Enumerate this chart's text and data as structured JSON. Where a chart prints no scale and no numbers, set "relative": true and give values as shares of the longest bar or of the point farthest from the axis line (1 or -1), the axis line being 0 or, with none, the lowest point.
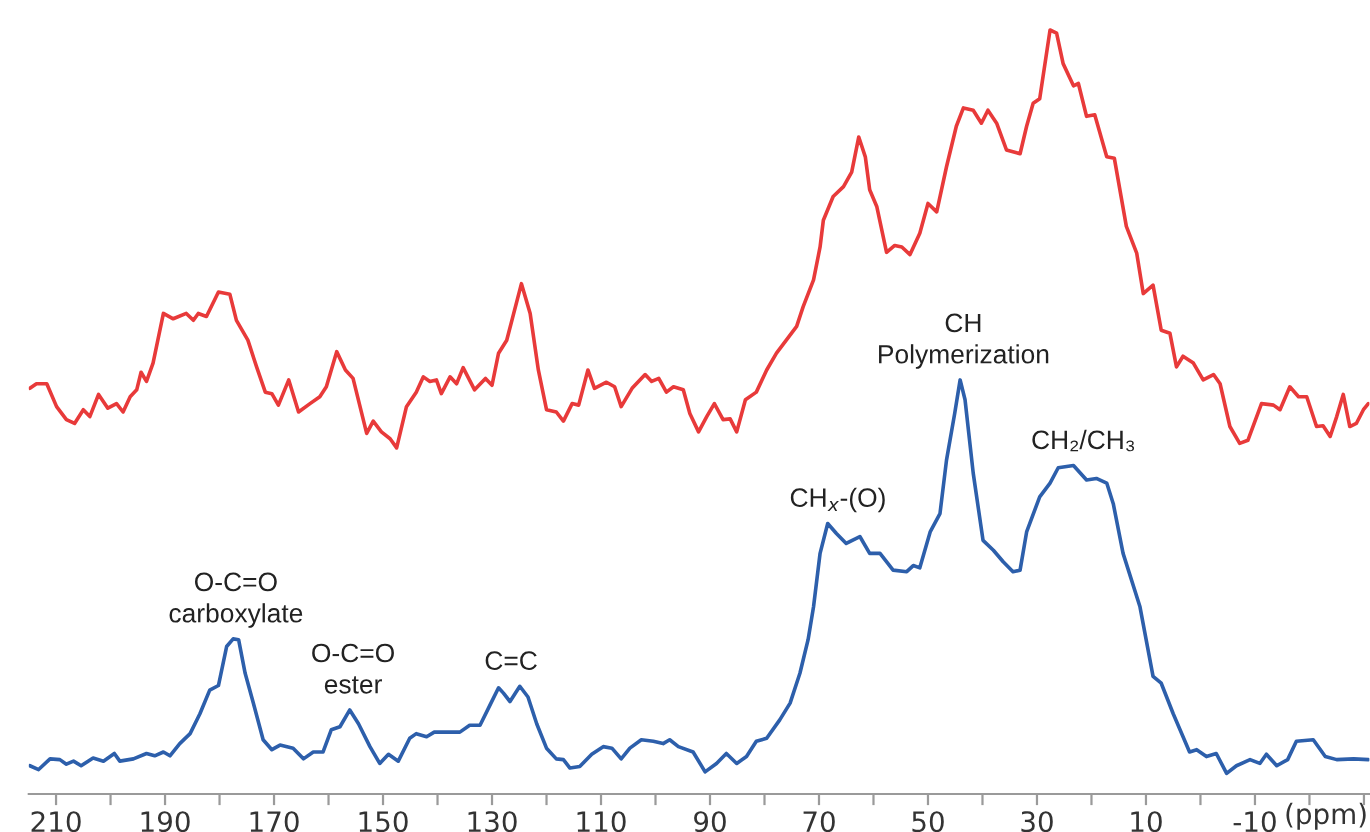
{
  "chart_data": {
    "type": "line",
    "relative": true,
    "xlabel": "(ppm)",
    "xlim": [
      215,
      -31
    ],
    "xticks": [
      210,
      {
        "value": 200,
        "label": null
      },
      190,
      {
        "value": 180,
        "label": null
      },
      170,
      {
        "value": 160,
        "label": null
      },
      150,
      {
        "value": 140,
        "label": null
      },
      130,
      {
        "value": 120,
        "label": null
      },
      110,
      {
        "value": 100,
        "label": null
      },
      90,
      {
        "value": 80,
        "label": null
      },
      70,
      {
        "value": 60,
        "label": null
      },
      50,
      {
        "value": 40,
        "label": null
      },
      30,
      {
        "value": 20,
        "label": null
      },
      10,
      {
        "value": 0,
        "label": null
      },
      -10,
      {
        "value": -20,
        "label": null
      },
      {
        "value": -30,
        "label": null
      }
    ],
    "series": [
      {
        "color": "#e83a3a",
        "x": [
          214.8,
          213.6,
          211.7,
          209.9,
          208.1,
          206.6,
          205.0,
          203.8,
          202.2,
          200.5,
          198.9,
          197.7,
          196.4,
          195.2,
          194.4,
          193.4,
          192.2,
          190.3,
          188.5,
          186.1,
          184.8,
          183.9,
          182.4,
          180.2,
          178.1,
          176.9,
          174.8,
          173.2,
          171.6,
          170.4,
          169.2,
          167.3,
          165.5,
          163.4,
          161.6,
          160.4,
          158.5,
          156.9,
          155.5,
          153.0,
          151.8,
          150.3,
          148.7,
          147.5,
          145.7,
          143.9,
          142.6,
          141.4,
          140.2,
          139.3,
          137.7,
          136.5,
          135.3,
          133.2,
          131.2,
          130.0,
          128.8,
          127.3,
          124.6,
          123.0,
          121.5,
          120.0,
          118.2,
          116.9,
          115.3,
          114.1,
          112.4,
          111.2,
          109.0,
          107.5,
          106.3,
          104.3,
          101.9,
          100.7,
          99.4,
          98.0,
          96.7,
          94.9,
          93.7,
          92.1,
          90.6,
          89.2,
          87.6,
          86.3,
          85.1,
          83.5,
          81.5,
          79.6,
          77.8,
          76.0,
          74.1,
          72.9,
          71.0,
          69.8,
          69.2,
          67.4,
          65.5,
          64.0,
          62.7,
          61.5,
          60.7,
          59.4,
          57.6,
          56.1,
          54.8,
          53.3,
          51.5,
          50.0,
          48.4,
          46.6,
          44.8,
          43.5,
          41.7,
          40.2,
          39.0,
          37.4,
          35.6,
          33.1,
          31.9,
          30.7,
          29.5,
          27.6,
          26.4,
          25.2,
          23.3,
          22.4,
          20.9,
          19.4,
          17.2,
          15.8,
          13.6,
          11.7,
          10.5,
          8.7,
          7.2,
          5.6,
          4.4,
          3.2,
          1.3,
          -0.5,
          -2.4,
          -3.6,
          -5.4,
          -7.2,
          -8.7,
          -11.2,
          -13.4,
          -14.6,
          -16.4,
          -18.0,
          -19.5,
          -21.3,
          -22.5,
          -23.8,
          -25.0,
          -26.2,
          -27.4,
          -28.6,
          -29.9,
          -30.8
        ],
        "values": [
          0.531,
          0.537,
          0.537,
          0.507,
          0.49,
          0.485,
          0.503,
          0.494,
          0.523,
          0.505,
          0.511,
          0.5,
          0.52,
          0.529,
          0.552,
          0.54,
          0.564,
          0.629,
          0.622,
          0.629,
          0.62,
          0.629,
          0.625,
          0.657,
          0.654,
          0.62,
          0.594,
          0.559,
          0.526,
          0.524,
          0.509,
          0.542,
          0.5,
          0.511,
          0.52,
          0.533,
          0.579,
          0.555,
          0.544,
          0.472,
          0.488,
          0.474,
          0.465,
          0.453,
          0.507,
          0.526,
          0.546,
          0.54,
          0.542,
          0.524,
          0.546,
          0.537,
          0.558,
          0.529,
          0.544,
          0.535,
          0.577,
          0.594,
          0.668,
          0.629,
          0.555,
          0.503,
          0.5,
          0.488,
          0.511,
          0.509,
          0.555,
          0.531,
          0.539,
          0.533,
          0.507,
          0.531,
          0.549,
          0.54,
          0.544,
          0.526,
          0.533,
          0.529,
          0.498,
          0.474,
          0.494,
          0.511,
          0.49,
          0.491,
          0.474,
          0.516,
          0.526,
          0.555,
          0.577,
          0.594,
          0.612,
          0.638,
          0.673,
          0.716,
          0.751,
          0.782,
          0.795,
          0.814,
          0.86,
          0.834,
          0.791,
          0.769,
          0.709,
          0.718,
          0.716,
          0.706,
          0.734,
          0.773,
          0.762,
          0.821,
          0.874,
          0.898,
          0.895,
          0.878,
          0.895,
          0.878,
          0.843,
          0.838,
          0.874,
          0.904,
          0.91,
          1.0,
          0.996,
          0.956,
          0.927,
          0.93,
          0.887,
          0.889,
          0.834,
          0.832,
          0.743,
          0.708,
          0.655,
          0.666,
          0.607,
          0.603,
          0.559,
          0.573,
          0.564,
          0.542,
          0.549,
          0.537,
          0.481,
          0.459,
          0.463,
          0.511,
          0.509,
          0.503,
          0.533,
          0.52,
          0.52,
          0.481,
          0.482,
          0.468,
          0.494,
          0.523,
          0.481,
          0.485,
          0.503,
          0.511
        ]
      },
      {
        "color": "#2d5fab",
        "x": [
          214.8,
          213.2,
          211.1,
          209.3,
          208.1,
          206.8,
          205.4,
          203.2,
          201.3,
          199.3,
          198.3,
          195.8,
          193.4,
          191.9,
          190.3,
          189.1,
          187.3,
          185.4,
          183.6,
          181.8,
          180.2,
          178.7,
          177.5,
          176.5,
          175.3,
          173.8,
          172.0,
          170.4,
          168.9,
          166.5,
          164.6,
          162.8,
          161.0,
          159.5,
          157.9,
          156.1,
          154.5,
          152.4,
          150.6,
          149.0,
          147.2,
          145.1,
          143.9,
          142.0,
          140.6,
          135.9,
          134.1,
          132.2,
          130.4,
          128.8,
          127.9,
          126.7,
          124.9,
          123.4,
          121.8,
          120.0,
          118.2,
          116.9,
          115.7,
          113.9,
          111.7,
          109.6,
          108.0,
          106.3,
          104.7,
          102.6,
          100.4,
          98.6,
          97.4,
          95.8,
          93.1,
          90.9,
          88.8,
          87.0,
          85.1,
          83.3,
          81.5,
          79.6,
          77.2,
          75.3,
          73.5,
          72.0,
          71.0,
          69.8,
          68.4,
          66.8,
          65.0,
          62.5,
          60.7,
          58.8,
          56.4,
          53.9,
          52.7,
          51.5,
          49.6,
          47.8,
          46.6,
          45.1,
          44.1,
          43.2,
          41.7,
          39.9,
          38.0,
          36.2,
          34.4,
          33.1,
          31.9,
          29.5,
          27.6,
          26.1,
          23.3,
          20.9,
          19.1,
          17.2,
          16.0,
          14.2,
          11.1,
          8.7,
          7.2,
          5.0,
          2.0,
          0.7,
          -1.1,
          -2.9,
          -4.8,
          -6.6,
          -9.1,
          -10.9,
          -12.1,
          -14.0,
          -16.0,
          -17.6,
          -20.7,
          -22.9,
          -25.0,
          -28.1,
          -30.8
        ],
        "values": [
          0.037,
          0.032,
          0.046,
          0.045,
          0.039,
          0.043,
          0.037,
          0.047,
          0.043,
          0.053,
          0.043,
          0.046,
          0.053,
          0.05,
          0.055,
          0.05,
          0.066,
          0.079,
          0.105,
          0.136,
          0.142,
          0.193,
          0.203,
          0.202,
          0.158,
          0.119,
          0.071,
          0.058,
          0.064,
          0.06,
          0.046,
          0.055,
          0.055,
          0.084,
          0.088,
          0.11,
          0.092,
          0.062,
          0.04,
          0.052,
          0.043,
          0.073,
          0.079,
          0.075,
          0.081,
          0.081,
          0.09,
          0.09,
          0.116,
          0.139,
          0.132,
          0.121,
          0.141,
          0.127,
          0.092,
          0.06,
          0.046,
          0.045,
          0.034,
          0.036,
          0.052,
          0.062,
          0.06,
          0.046,
          0.06,
          0.071,
          0.069,
          0.066,
          0.071,
          0.062,
          0.055,
          0.029,
          0.04,
          0.053,
          0.04,
          0.049,
          0.069,
          0.073,
          0.097,
          0.119,
          0.158,
          0.202,
          0.245,
          0.315,
          0.354,
          0.341,
          0.328,
          0.337,
          0.315,
          0.315,
          0.293,
          0.291,
          0.299,
          0.296,
          0.343,
          0.367,
          0.437,
          0.498,
          0.542,
          0.516,
          0.42,
          0.332,
          0.319,
          0.304,
          0.291,
          0.293,
          0.343,
          0.389,
          0.407,
          0.427,
          0.43,
          0.411,
          0.413,
          0.407,
          0.38,
          0.315,
          0.245,
          0.154,
          0.145,
          0.105,
          0.055,
          0.058,
          0.049,
          0.053,
          0.027,
          0.037,
          0.045,
          0.04,
          0.052,
          0.037,
          0.045,
          0.069,
          0.071,
          0.049,
          0.045,
          0.046,
          0.045
        ]
      }
    ],
    "annotations": [
      {
        "text": "O-C=O\ncarboxylate",
        "x": 177.0,
        "y": 0.203
      },
      {
        "text": "O-C=O\nester",
        "x": 155.5,
        "y": 0.11
      },
      {
        "text": "C=C",
        "x": 126.5,
        "y": 0.141
      },
      {
        "text": "CH$_{x}$-(O)",
        "x": 66.5,
        "y": 0.354
      },
      {
        "text": "CH\nPolymerization",
        "x": 43.5,
        "y": 0.542
      },
      {
        "text": "CH₂/CH₃",
        "x": 21.5,
        "y": 0.43
      }
    ]
  }
}
